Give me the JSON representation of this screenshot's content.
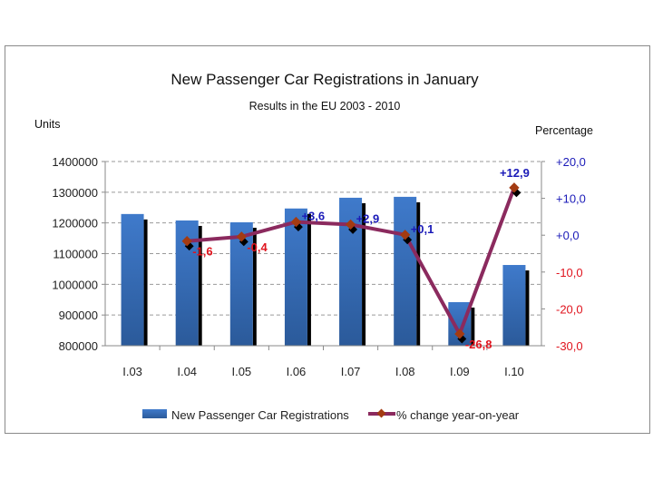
{
  "chart_data": {
    "type": "bar",
    "title": "New Passenger Car Registrations in January",
    "subtitle": "Results in the EU 2003 - 2010",
    "categories": [
      "I.03",
      "I.04",
      "I.05",
      "I.06",
      "I.07",
      "I.08",
      "I.09",
      "I.10"
    ],
    "series": [
      {
        "name": "New Passenger Car Registrations",
        "type": "bar",
        "axis": "left",
        "color": "#3a6fb8",
        "values": [
          1229000,
          1208000,
          1202000,
          1247000,
          1282000,
          1285000,
          942000,
          1063000
        ]
      },
      {
        "name": "% change year-on-year",
        "type": "line",
        "axis": "right",
        "color": "#8b2a5e",
        "marker_color": "#a33b12",
        "values": [
          null,
          -1.6,
          -0.4,
          3.6,
          2.9,
          0.1,
          -26.8,
          12.9
        ],
        "labels": [
          "",
          "-1,6",
          "-0,4",
          "+3,6",
          "+2,9",
          "+0,1",
          "-26,8",
          "+12,9"
        ]
      }
    ],
    "ylabel_left": "Units",
    "ylabel_right": "Percentage",
    "ylim_left": [
      800000,
      1400000
    ],
    "ylim_right": [
      -30,
      20
    ],
    "yticks_left": [
      "1400000",
      "1300000",
      "1200000",
      "1100000",
      "1000000",
      "900000",
      "800000"
    ],
    "yticks_right": [
      "+20,0",
      "+10,0",
      "+0,0",
      "-10,0",
      "-20,0",
      "-30,0"
    ],
    "colors": {
      "positive": "#1a1ab8",
      "negative": "#e0141e"
    },
    "grid": true,
    "legend_position": "bottom"
  }
}
